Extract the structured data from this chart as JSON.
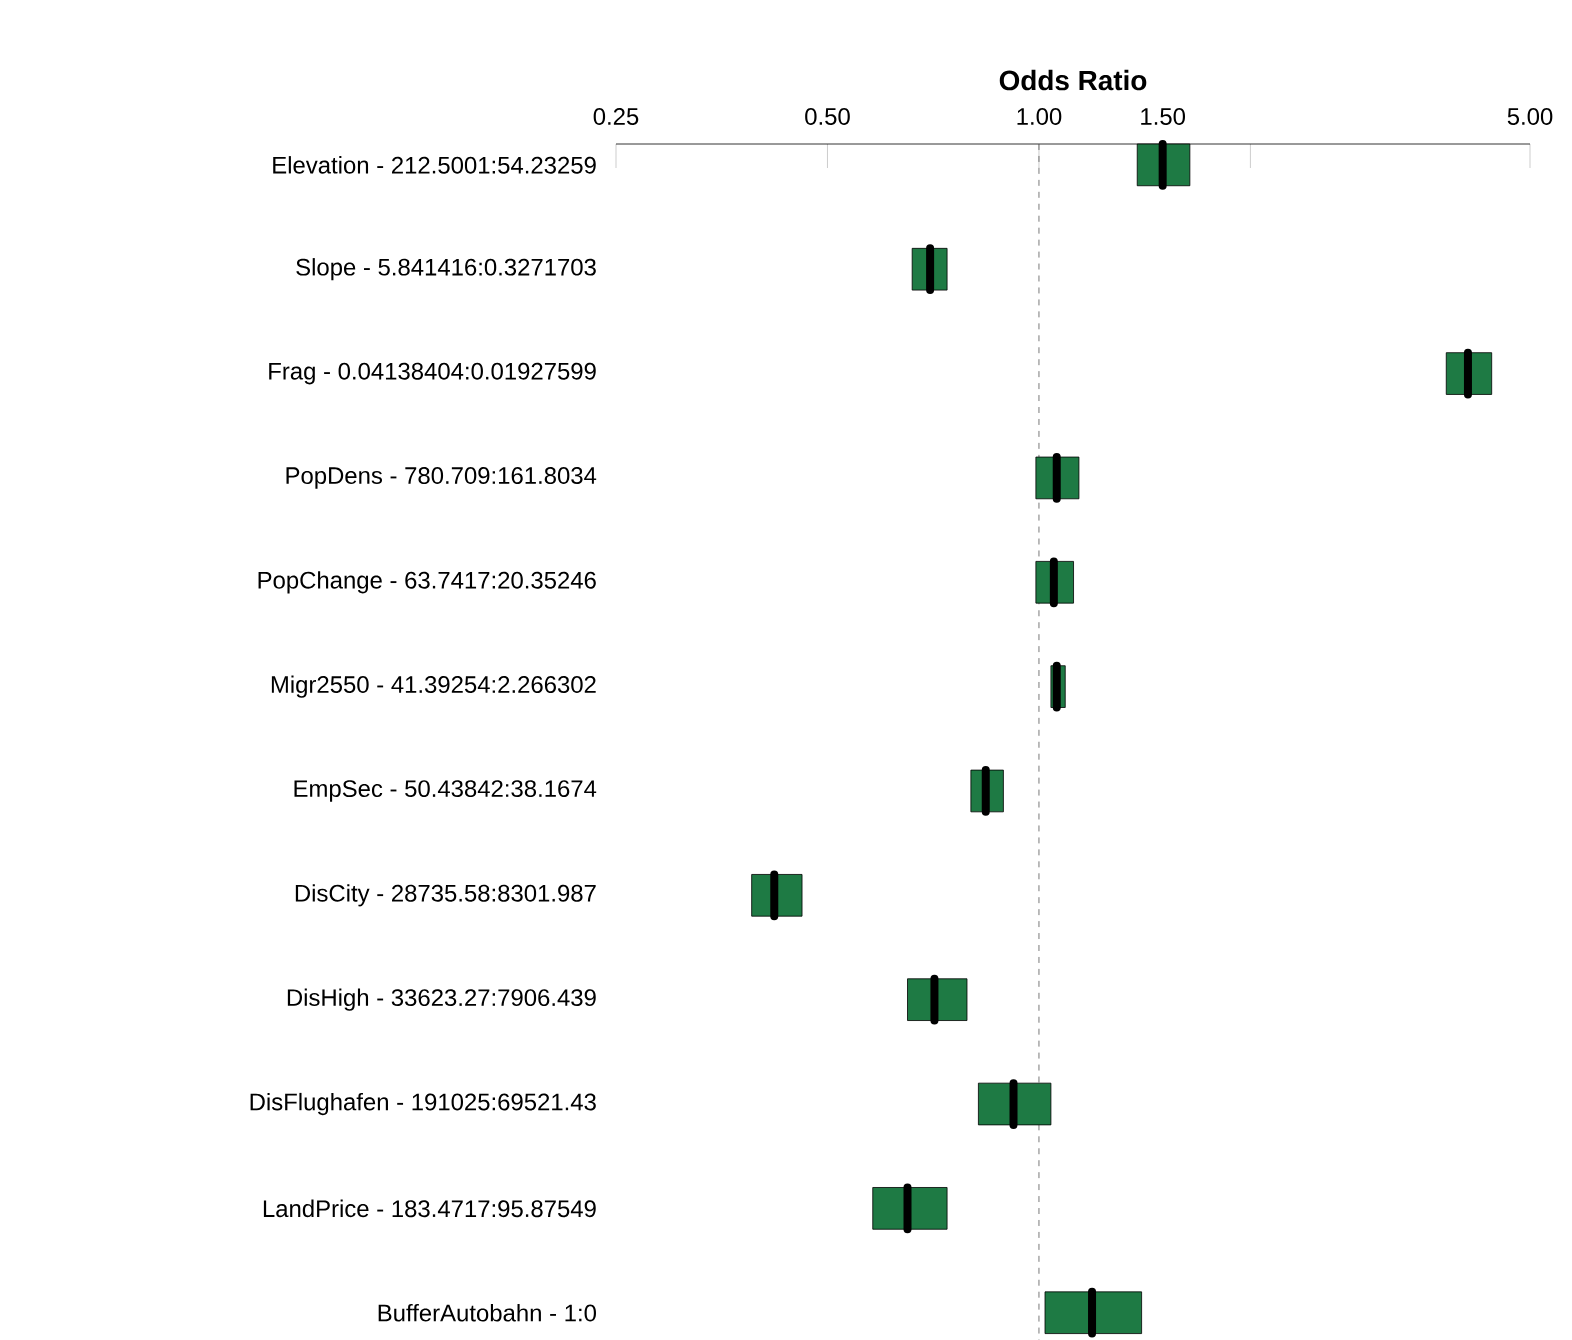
{
  "chart_data": {
    "type": "box",
    "orientation": "horizontal",
    "log": "x",
    "xlabel": "Odds Ratio",
    "categories": [
      "Elevation - 212.5001:54.23259",
      "Slope - 5.841416:0.3271703",
      "Frag - 0.04138404:0.01927599",
      "PopDens - 780.709:161.8034",
      "PopChange - 63.7417:20.35246",
      "Migr2550 - 41.39254:2.266302",
      "EmpSec - 50.43842:38.1674",
      "DisCity - 28735.58:8301.987",
      "DisHigh - 33623.27:7906.439",
      "DisFlughafen - 191025:69521.43",
      "LandPrice - 183.4717:95.87549",
      "BufferAutobahn - 1:0"
    ],
    "boxes": [
      {
        "low": 1.38,
        "q1": 1.38,
        "median": 1.5,
        "q3": 1.64,
        "high": 1.64
      },
      {
        "low": 0.66,
        "q1": 0.66,
        "median": 0.7,
        "q3": 0.74,
        "high": 0.74
      },
      {
        "low": 3.8,
        "q1": 3.8,
        "median": 4.08,
        "q3": 4.41,
        "high": 4.41
      },
      {
        "low": 0.99,
        "q1": 0.99,
        "median": 1.06,
        "q3": 1.14,
        "high": 1.14
      },
      {
        "low": 0.99,
        "q1": 0.99,
        "median": 1.05,
        "q3": 1.12,
        "high": 1.12
      },
      {
        "low": 1.04,
        "q1": 1.04,
        "median": 1.06,
        "q3": 1.09,
        "high": 1.09
      },
      {
        "low": 0.8,
        "q1": 0.8,
        "median": 0.84,
        "q3": 0.89,
        "high": 0.89
      },
      {
        "low": 0.39,
        "q1": 0.39,
        "median": 0.42,
        "q3": 0.46,
        "high": 0.46
      },
      {
        "low": 0.65,
        "q1": 0.65,
        "median": 0.71,
        "q3": 0.79,
        "high": 0.79
      },
      {
        "low": 0.82,
        "q1": 0.82,
        "median": 0.92,
        "q3": 1.04,
        "high": 1.04
      },
      {
        "low": 0.58,
        "q1": 0.58,
        "median": 0.65,
        "q3": 0.74,
        "high": 0.74
      },
      {
        "low": 1.02,
        "q1": 1.02,
        "median": 1.19,
        "q3": 1.4,
        "high": 1.4
      }
    ],
    "color": "#1e7a44",
    "xlim": [
      0.25,
      5
    ],
    "xticks": [
      0.25,
      {
        "value": 0.5,
        "label": "0.50"
      },
      {
        "value": 1,
        "label": "1.00"
      },
      {
        "value": 1.5,
        "label": "1.50"
      },
      {
        "value": 2,
        "label": null
      },
      {
        "value": 5,
        "label": "5.00"
      }
    ],
    "ref_lines": [
      {
        "axis": "x",
        "value": 1,
        "color": "#555555",
        "line_style": "dashed"
      }
    ],
    "grid": false
  }
}
